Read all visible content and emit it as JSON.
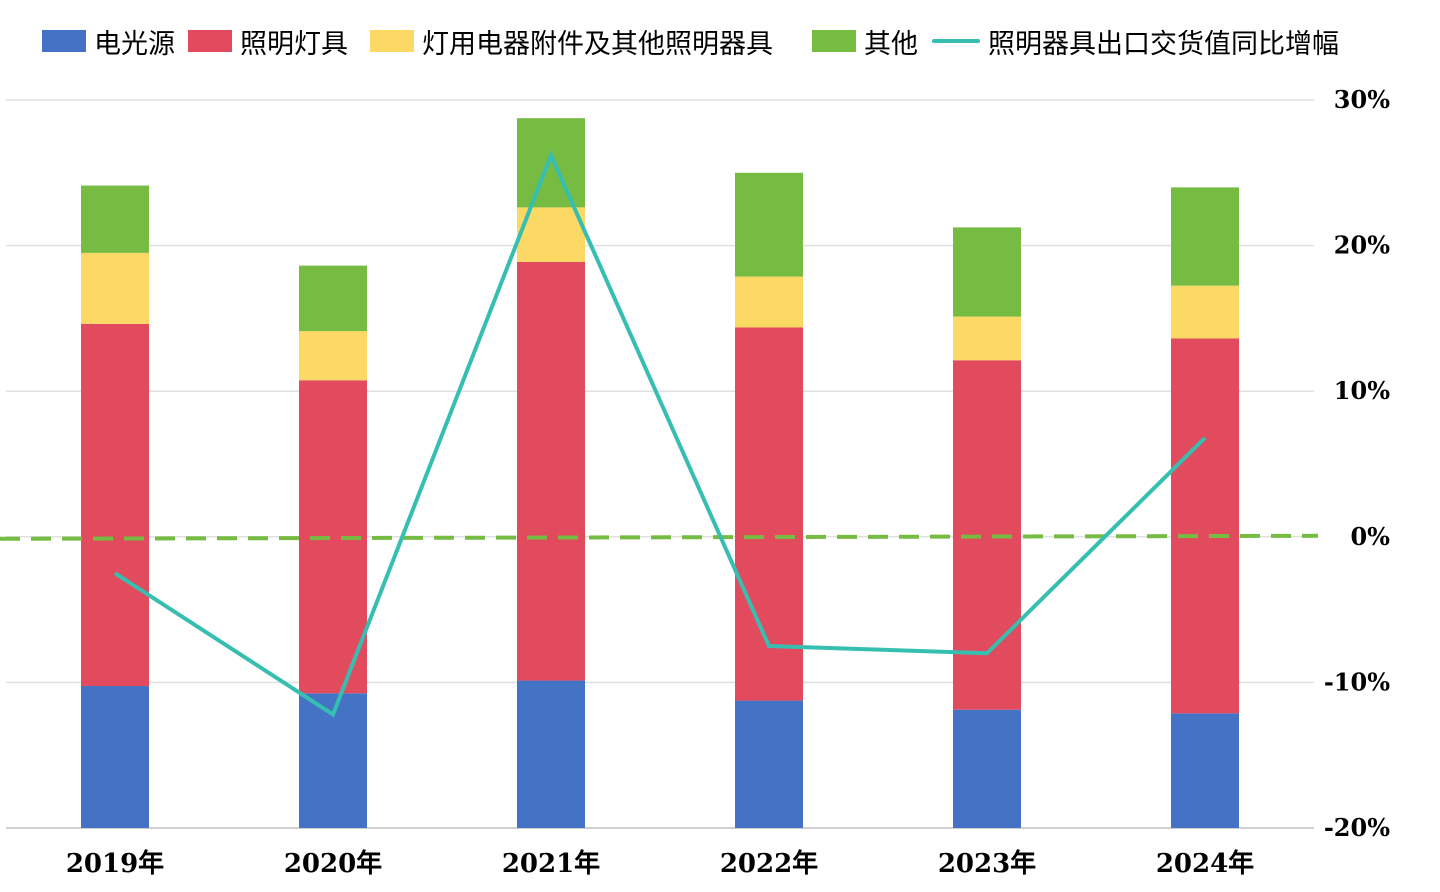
{
  "chart_data": {
    "type": "bar",
    "stacked": true,
    "categories": [
      "2019年",
      "2020年",
      "2021年",
      "2022年",
      "2023年",
      "2024年"
    ],
    "series": [
      {
        "name": "电光源",
        "color": "#4472c4",
        "values": [
          0.78,
          0.74,
          0.81,
          0.7,
          0.65,
          0.63
        ]
      },
      {
        "name": "照明灯具",
        "color": "#e24a5e",
        "values": [
          1.99,
          1.72,
          2.3,
          2.05,
          1.92,
          2.06
        ]
      },
      {
        "name": "灯用电器附件及其他照明器具",
        "color": "#fcd864",
        "values": [
          0.39,
          0.27,
          0.3,
          0.28,
          0.24,
          0.29
        ]
      },
      {
        "name": "其他",
        "color": "#76bb42",
        "values": [
          0.37,
          0.36,
          0.49,
          0.57,
          0.49,
          0.54
        ]
      }
    ],
    "line": {
      "name": "照明器具出口交货值同比增幅",
      "color": "#36bfb0",
      "axis": "right",
      "values": [
        -2.5,
        -12.2,
        26.2,
        -7.5,
        -8.0,
        6.8
      ]
    },
    "reference_line": {
      "value": 0,
      "axis": "right",
      "color": "#76bb42",
      "style": "dashed"
    },
    "y_left_lim": [
      0,
      4
    ],
    "y_right_lim": [
      -20,
      30
    ],
    "y_right_ticks": [
      "30%",
      "20%",
      "10%",
      "0%",
      "-10%",
      "-20%"
    ],
    "grid": true,
    "legend_position": "top"
  }
}
